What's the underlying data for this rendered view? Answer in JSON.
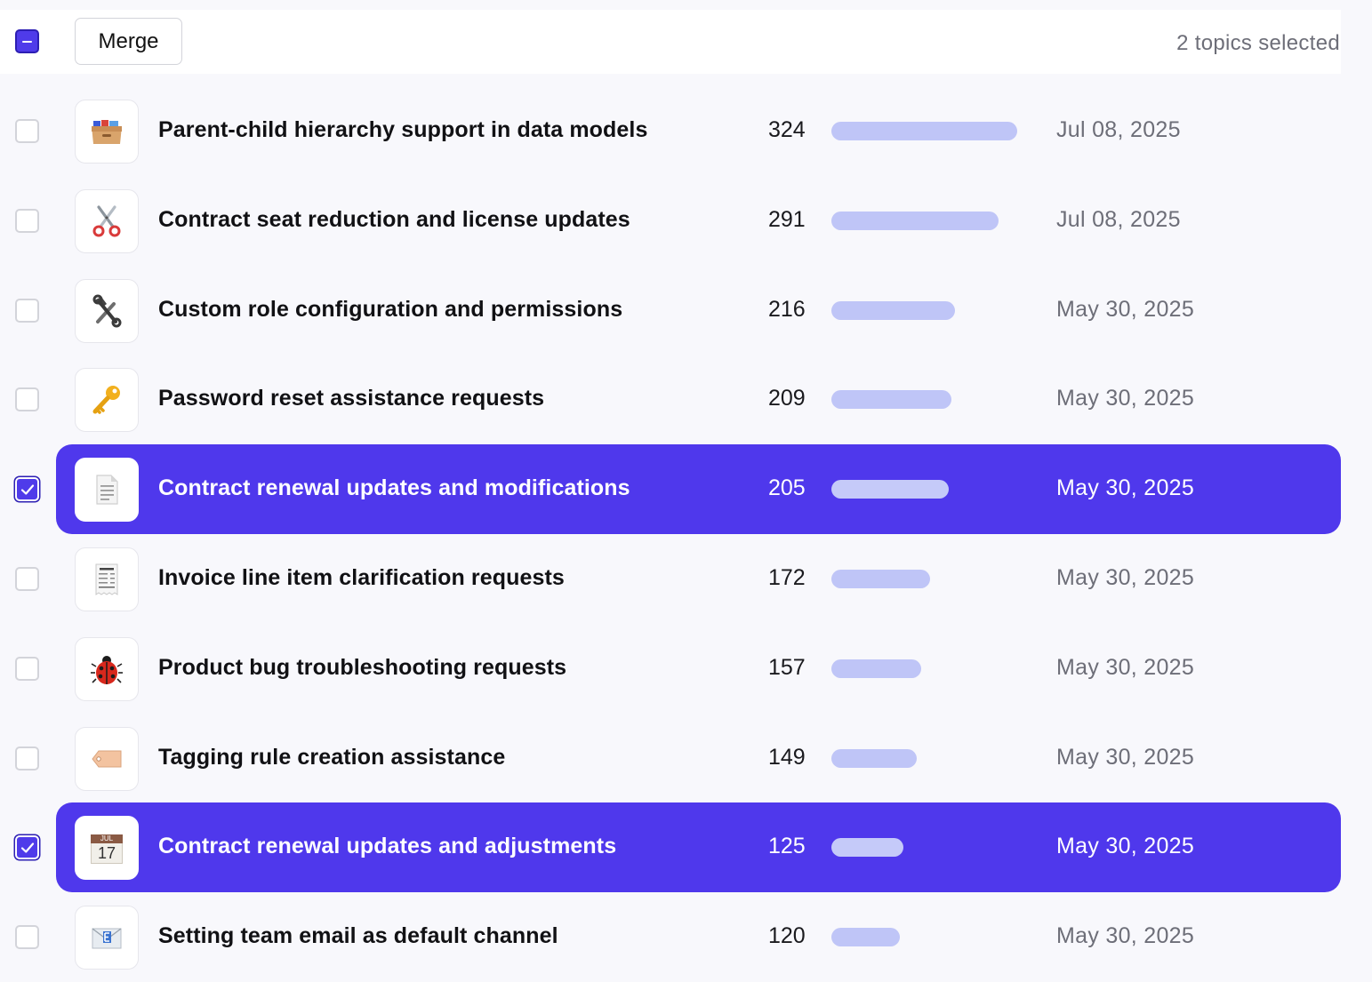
{
  "toolbar": {
    "merge_label": "Merge",
    "selection_status": "2 topics selected",
    "select_all_state": "indeterminate"
  },
  "colors": {
    "accent": "#4f38ec",
    "bar": "#bfc5f7",
    "muted_text": "#6d6e78"
  },
  "max_count": 324,
  "topics": [
    {
      "icon": "card-file-box-icon",
      "title": "Parent-child hierarchy support in data models",
      "count": "324",
      "date": "Jul 08, 2025",
      "selected": false
    },
    {
      "icon": "scissors-icon",
      "title": "Contract seat reduction and license updates",
      "count": "291",
      "date": "Jul 08, 2025",
      "selected": false
    },
    {
      "icon": "hammer-and-wrench-icon",
      "title": "Custom role configuration and permissions",
      "count": "216",
      "date": "May 30, 2025",
      "selected": false
    },
    {
      "icon": "key-icon",
      "title": "Password reset assistance requests",
      "count": "209",
      "date": "May 30, 2025",
      "selected": false
    },
    {
      "icon": "document-icon",
      "title": "Contract renewal updates and modifications",
      "count": "205",
      "date": "May 30, 2025",
      "selected": true
    },
    {
      "icon": "receipt-icon",
      "title": "Invoice line item clarification requests",
      "count": "172",
      "date": "May 30, 2025",
      "selected": false
    },
    {
      "icon": "ladybug-icon",
      "title": "Product bug troubleshooting requests",
      "count": "157",
      "date": "May 30, 2025",
      "selected": false
    },
    {
      "icon": "tag-icon",
      "title": "Tagging rule creation assistance",
      "count": "149",
      "date": "May 30, 2025",
      "selected": false
    },
    {
      "icon": "calendar-icon",
      "title": "Contract renewal updates and adjustments",
      "count": "125",
      "date": "May 30, 2025",
      "selected": true,
      "icon_month": "JUL",
      "icon_day": "17"
    },
    {
      "icon": "envelope-icon",
      "title": "Setting team email as default channel",
      "count": "120",
      "date": "May 30, 2025",
      "selected": false
    }
  ]
}
